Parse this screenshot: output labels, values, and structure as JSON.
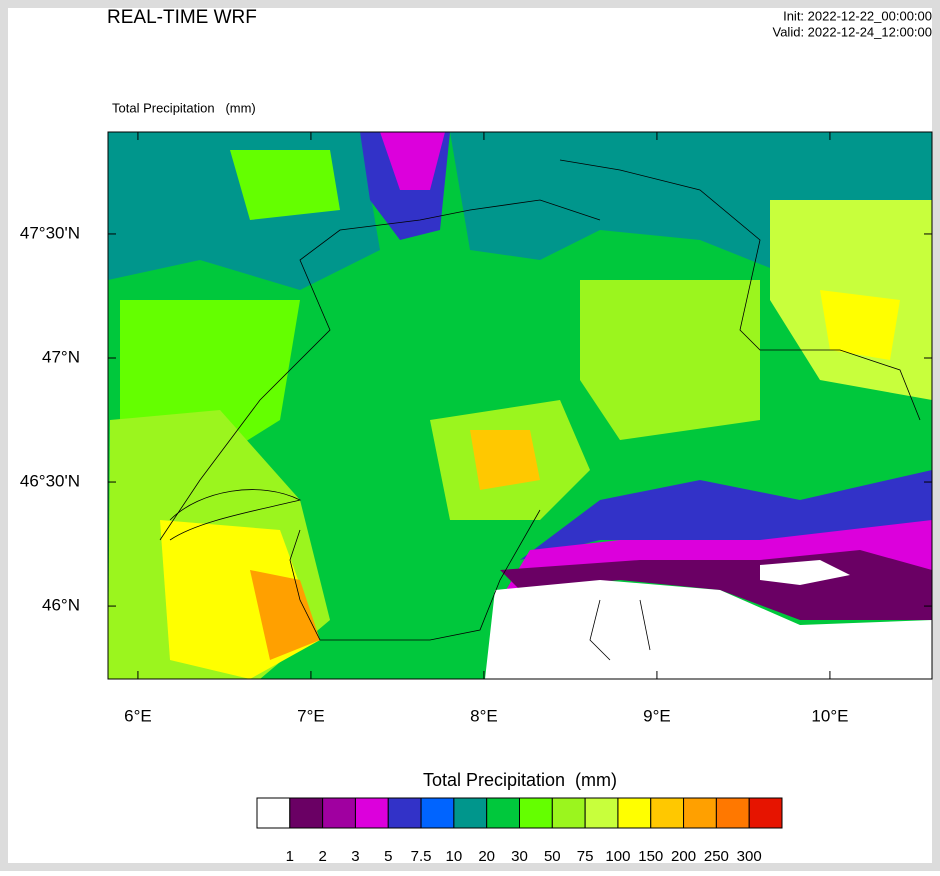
{
  "header": {
    "title": "REAL-TIME WRF",
    "init": "Init: 2022-12-22_00:00:00",
    "valid": "Valid: 2022-12-24_12:00:00"
  },
  "map": {
    "label": "Total Precipitation   (mm)",
    "xlim": [
      5.827,
      10.59
    ],
    "ylim": [
      45.706,
      47.911
    ],
    "xticks": [
      {
        "value": 6,
        "label": "6°E"
      },
      {
        "value": 7,
        "label": "7°E"
      },
      {
        "value": 8,
        "label": "8°E"
      },
      {
        "value": 9,
        "label": "9°E"
      },
      {
        "value": 10,
        "label": "10°E"
      }
    ],
    "yticks": [
      {
        "value": 46,
        "label": "46°N"
      },
      {
        "value": 46.5,
        "label": "46°30'N"
      },
      {
        "value": 47,
        "label": "47°N"
      },
      {
        "value": 47.5,
        "label": "47°30'N"
      }
    ]
  },
  "colorbar": {
    "title": "Total Precipitation  (mm)",
    "colors": [
      "#ffffff",
      "#6a0064",
      "#a000a0",
      "#dc00dc",
      "#3232c8",
      "#0064ff",
      "#00968c",
      "#00c83c",
      "#64ff00",
      "#9bf51e",
      "#c8ff3c",
      "#ffff00",
      "#ffc800",
      "#ffa000",
      "#ff7800",
      "#e61400"
    ],
    "levels": [
      1,
      2,
      3,
      5,
      7.5,
      10,
      20,
      30,
      50,
      75,
      100,
      150,
      200,
      250,
      300
    ]
  }
}
